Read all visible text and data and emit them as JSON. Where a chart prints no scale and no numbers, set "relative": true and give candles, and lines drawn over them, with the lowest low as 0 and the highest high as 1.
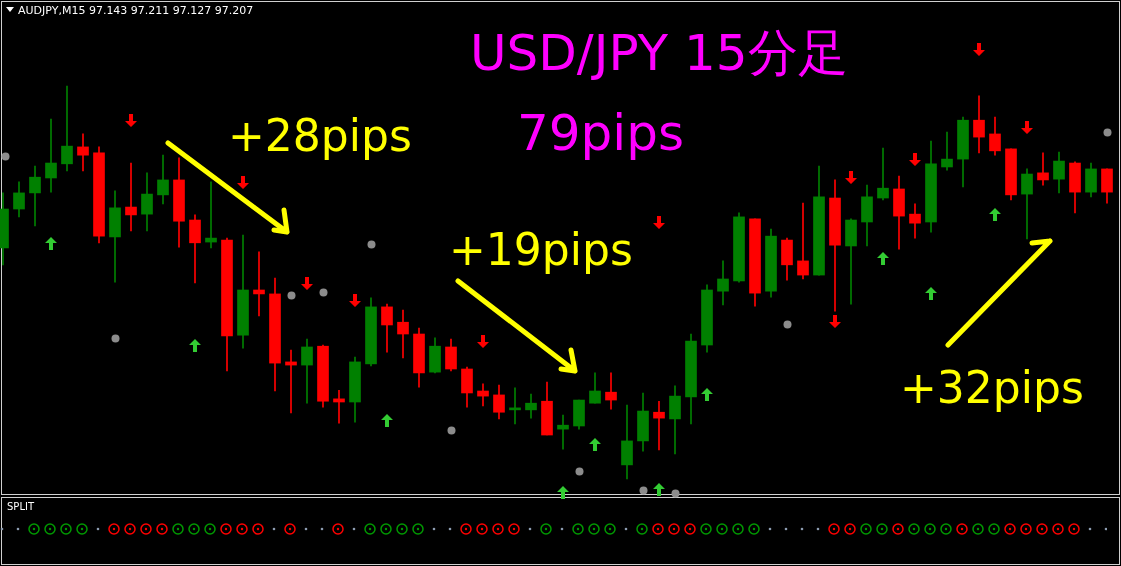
{
  "chart_data": [
    {
      "type": "candlestick",
      "title": "AUDJPY,M15 97.143 97.211 97.127 97.207",
      "relative": true,
      "annotations": [
        "USD/JPY 15分足",
        "79pips",
        "+28pips",
        "+19pips",
        "+32pips"
      ],
      "categories": [
        null,
        null,
        null,
        null,
        null,
        null,
        null,
        null,
        null,
        null,
        null,
        null,
        null,
        null,
        null,
        null,
        null,
        null,
        null,
        null,
        null,
        null,
        null,
        null,
        null,
        null,
        null,
        null,
        null,
        null,
        null,
        null,
        null,
        null,
        null,
        null,
        null,
        null,
        null,
        null,
        null,
        null,
        null,
        null,
        null,
        null,
        null,
        null,
        null,
        null,
        null,
        null,
        null,
        null,
        null,
        null,
        null,
        null,
        null,
        null,
        null,
        null,
        null,
        null,
        null,
        null,
        null,
        null,
        null,
        null
      ],
      "ohlc": [
        [
          0.588,
          0.728,
          0.545,
          0.687
        ],
        [
          0.687,
          0.756,
          0.667,
          0.728
        ],
        [
          0.728,
          0.796,
          0.644,
          0.768
        ],
        [
          0.766,
          0.916,
          0.73,
          0.804
        ],
        [
          0.802,
          1,
          0.784,
          0.847
        ],
        [
          0.845,
          0.878,
          0.784,
          0.824
        ],
        [
          0.83,
          0.845,
          0.601,
          0.618
        ],
        [
          0.616,
          0.733,
          0.501,
          0.69
        ],
        [
          0.692,
          0.804,
          0.631,
          0.672
        ],
        [
          0.674,
          0.779,
          0.631,
          0.725
        ],
        [
          0.723,
          0.824,
          0.7,
          0.761
        ],
        [
          0.761,
          0.817,
          0.59,
          0.656
        ],
        [
          0.659,
          0.672,
          0.499,
          0.601
        ],
        [
          0.603,
          0.756,
          0.588,
          0.613
        ],
        [
          0.608,
          0.613,
          0.275,
          0.364
        ],
        [
          0.366,
          0.621,
          0.333,
          0.481
        ],
        [
          0.481,
          0.578,
          0.415,
          0.471
        ],
        [
          0.471,
          0.511,
          0.224,
          0.295
        ],
        [
          0.298,
          0.328,
          0.168,
          0.29
        ],
        [
          0.29,
          0.356,
          0.193,
          0.336
        ],
        [
          0.338,
          0.341,
          0.183,
          0.198
        ],
        [
          0.204,
          0.226,
          0.142,
          0.196
        ],
        [
          0.196,
          0.31,
          0.145,
          0.298
        ],
        [
          0.293,
          0.461,
          0.288,
          0.438
        ],
        [
          0.438,
          0.445,
          0.323,
          0.392
        ],
        [
          0.399,
          0.43,
          0.308,
          0.369
        ],
        [
          0.369,
          0.384,
          0.234,
          0.27
        ],
        [
          0.272,
          0.359,
          0.27,
          0.338
        ],
        [
          0.336,
          0.356,
          0.275,
          0.28
        ],
        [
          0.28,
          0.285,
          0.183,
          0.219
        ],
        [
          0.224,
          0.242,
          0.186,
          0.211
        ],
        [
          0.214,
          0.239,
          0.153,
          0.17
        ],
        [
          0.176,
          0.232,
          0.14,
          0.181
        ],
        [
          0.176,
          0.216,
          0.155,
          0.193
        ],
        [
          0.198,
          0.247,
          0.112,
          0.112
        ],
        [
          0.127,
          0.163,
          0.076,
          0.137
        ],
        [
          0.135,
          0.201,
          0.127,
          0.201
        ],
        [
          0.193,
          0.27,
          0.193,
          0.224
        ],
        [
          0.221,
          0.27,
          0.178,
          0.201
        ],
        [
          0.036,
          0.188,
          0,
          0.097
        ],
        [
          0.097,
          0.219,
          0.071,
          0.173
        ],
        [
          0.17,
          0.198,
          0.074,
          0.155
        ],
        [
          0.153,
          0.237,
          0.064,
          0.211
        ],
        [
          0.209,
          0.369,
          0.14,
          0.351
        ],
        [
          0.341,
          0.494,
          0.323,
          0.481
        ],
        [
          0.478,
          0.555,
          0.443,
          0.509
        ],
        [
          0.504,
          0.677,
          0.501,
          0.667
        ],
        [
          0.662,
          0.662,
          0.44,
          0.473
        ],
        [
          0.478,
          0.636,
          0.463,
          0.618
        ],
        [
          0.608,
          0.613,
          0.506,
          0.545
        ],
        [
          0.555,
          0.702,
          0.509,
          0.519
        ],
        [
          0.519,
          0.796,
          0.519,
          0.718
        ],
        [
          0.715,
          0.761,
          0.427,
          0.595
        ],
        [
          0.593,
          0.662,
          0.445,
          0.659
        ],
        [
          0.654,
          0.748,
          0.593,
          0.718
        ],
        [
          0.715,
          0.842,
          0.71,
          0.74
        ],
        [
          0.738,
          0.771,
          0.585,
          0.669
        ],
        [
          0.674,
          0.7,
          0.613,
          0.651
        ],
        [
          0.654,
          0.86,
          0.628,
          0.802
        ],
        [
          0.794,
          0.883,
          0.786,
          0.814
        ],
        [
          0.814,
          0.921,
          0.743,
          0.913
        ],
        [
          0.913,
          0.975,
          0.83,
          0.87
        ],
        [
          0.878,
          0.921,
          0.824,
          0.835
        ],
        [
          0.84,
          0.84,
          0.71,
          0.723
        ],
        [
          0.725,
          0.789,
          0.611,
          0.776
        ],
        [
          0.779,
          0.83,
          0.748,
          0.761
        ],
        [
          0.763,
          0.832,
          0.728,
          0.809
        ],
        [
          0.804,
          0.807,
          0.677,
          0.73
        ],
        [
          0.73,
          0.804,
          0.718,
          0.789
        ],
        [
          0.789,
          0.789,
          0.702,
          0.73
        ]
      ],
      "colors": [
        "#008000",
        "#008000",
        "#008000",
        "#008000",
        "#008000",
        "#ff0000",
        "#ff0000",
        "#008000",
        "#ff0000",
        "#008000",
        "#008000",
        "#ff0000",
        "#ff0000",
        "#008000",
        "#ff0000",
        "#008000",
        "#ff0000",
        "#ff0000",
        "#ff0000",
        "#008000",
        "#ff0000",
        "#ff0000",
        "#008000",
        "#008000",
        "#ff0000",
        "#ff0000",
        "#ff0000",
        "#008000",
        "#ff0000",
        "#ff0000",
        "#ff0000",
        "#ff0000",
        "#008000",
        "#008000",
        "#ff0000",
        "#008000",
        "#008000",
        "#008000",
        "#ff0000",
        "#008000",
        "#008000",
        "#ff0000",
        "#008000",
        "#008000",
        "#008000",
        "#008000",
        "#008000",
        "#ff0000",
        "#008000",
        "#ff0000",
        "#ff0000",
        "#008000",
        "#ff0000",
        "#008000",
        "#008000",
        "#008000",
        "#ff0000",
        "#ff0000",
        "#008000",
        "#008000",
        "#008000",
        "#ff0000",
        "#ff0000",
        "#ff0000",
        "#008000",
        "#ff0000",
        "#008000",
        "#ff0000",
        "#008000",
        "#ff0000"
      ]
    },
    {
      "type": "other",
      "title": "SPLIT"
    }
  ]
}
